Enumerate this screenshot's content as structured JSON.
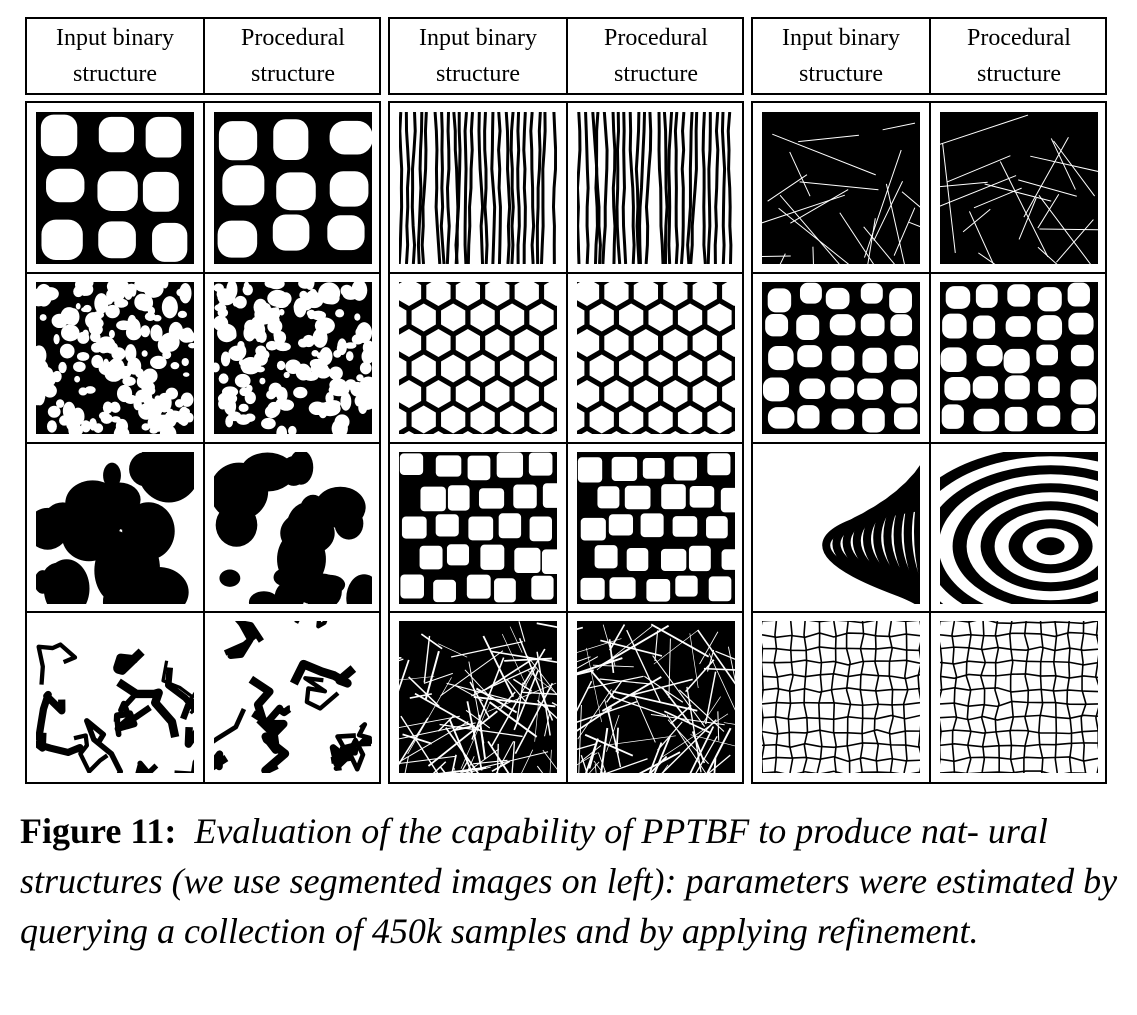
{
  "panels": [
    {
      "header": {
        "input_line1": "Input binary",
        "input_line2": "structure",
        "proc_line1": "Procedural",
        "proc_line2": "structure"
      },
      "rows": [
        {
          "input": "large-cells",
          "procedural": "large-cells"
        },
        {
          "input": "fine-blobs",
          "procedural": "fine-blobs"
        },
        {
          "input": "coarse-blobs",
          "procedural": "coarse-blobs"
        },
        {
          "input": "cracked-plates",
          "procedural": "cracked-plates"
        }
      ]
    },
    {
      "header": {
        "input_line1": "Input binary",
        "input_line2": "structure",
        "proc_line1": "Procedural",
        "proc_line2": "structure"
      },
      "rows": [
        {
          "input": "vertical-stripes",
          "procedural": "vertical-stripes"
        },
        {
          "input": "hexagons",
          "procedural": "hexagons"
        },
        {
          "input": "stone-wall",
          "procedural": "stone-wall"
        },
        {
          "input": "needles",
          "procedural": "needles"
        }
      ]
    },
    {
      "header": {
        "input_line1": "Input binary",
        "input_line2": "structure",
        "proc_line1": "Procedural",
        "proc_line2": "structure"
      },
      "rows": [
        {
          "input": "thin-lines",
          "procedural": "thin-lines"
        },
        {
          "input": "rounded-cells",
          "procedural": "rounded-cells"
        },
        {
          "input": "curved-bands",
          "procedural": "concentric-rings"
        },
        {
          "input": "fine-cracks",
          "procedural": "fine-cracks"
        }
      ]
    }
  ],
  "caption": {
    "label": "Figure 11:",
    "text": "Evaluation of the capability of PPTBF to produce nat- ural structures (we use segmented images on left): parameters were estimated by querying a collection of 450k samples and by applying refinement."
  }
}
